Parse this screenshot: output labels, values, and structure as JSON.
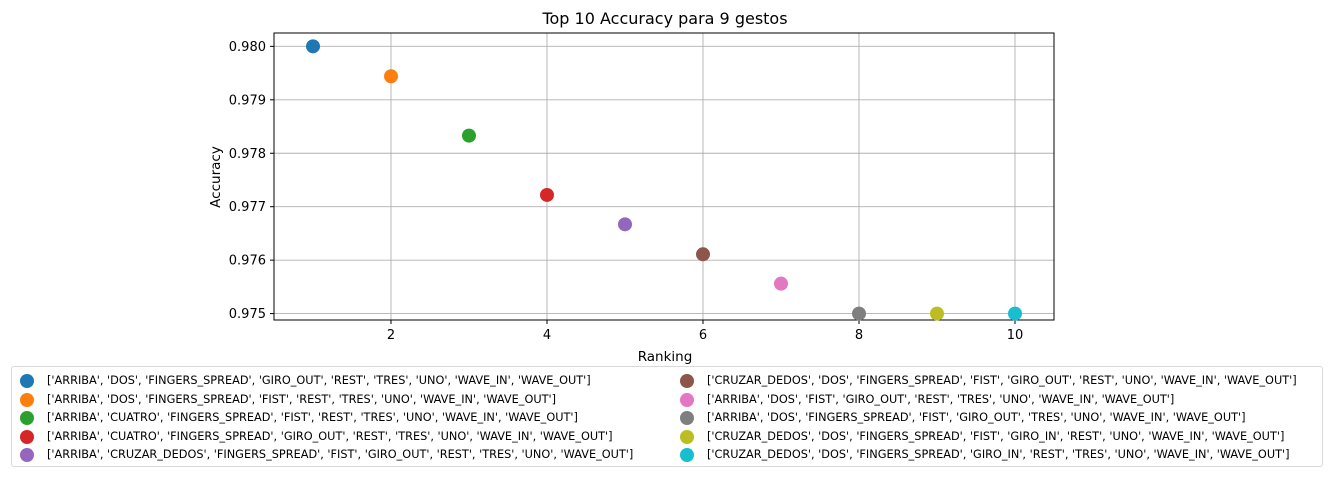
{
  "chart_data": {
    "type": "scatter",
    "title": "Top 10 Accuracy para 9 gestos",
    "xlabel": "Ranking",
    "ylabel": "Accuracy",
    "xlim": [
      0.5,
      10.5
    ],
    "ylim": [
      0.97488,
      0.98025
    ],
    "xticks": [
      2,
      4,
      6,
      8,
      10
    ],
    "xtick_labels": [
      "2",
      "4",
      "6",
      "8",
      "10"
    ],
    "yticks": [
      0.975,
      0.976,
      0.977,
      0.978,
      0.979,
      0.98
    ],
    "ytick_labels": [
      "0.975",
      "0.976",
      "0.977",
      "0.978",
      "0.979",
      "0.980"
    ],
    "grid": true,
    "legend_position": "bottom-center",
    "series": [
      {
        "name": "['ARRIBA', 'DOS', 'FINGERS_SPREAD', 'GIRO_OUT', 'REST', 'TRES', 'UNO', 'WAVE_IN', 'WAVE_OUT']",
        "x": 1,
        "y": 0.98,
        "color": "#1f77b4"
      },
      {
        "name": "['ARRIBA', 'DOS', 'FINGERS_SPREAD', 'FIST', 'REST', 'TRES', 'UNO', 'WAVE_IN', 'WAVE_OUT']",
        "x": 2,
        "y": 0.97944,
        "color": "#ff7f0e"
      },
      {
        "name": "['ARRIBA', 'CUATRO', 'FINGERS_SPREAD', 'FIST', 'REST', 'TRES', 'UNO', 'WAVE_IN', 'WAVE_OUT']",
        "x": 3,
        "y": 0.97833,
        "color": "#2ca02c"
      },
      {
        "name": "['ARRIBA', 'CUATRO', 'FINGERS_SPREAD', 'GIRO_OUT', 'REST', 'TRES', 'UNO', 'WAVE_IN', 'WAVE_OUT']",
        "x": 4,
        "y": 0.97722,
        "color": "#d62728"
      },
      {
        "name": "['ARRIBA', 'CRUZAR_DEDOS', 'FINGERS_SPREAD', 'FIST', 'GIRO_OUT', 'REST', 'TRES', 'UNO', 'WAVE_OUT']",
        "x": 5,
        "y": 0.97667,
        "color": "#9467bd"
      },
      {
        "name": "['CRUZAR_DEDOS', 'DOS', 'FINGERS_SPREAD', 'FIST', 'GIRO_OUT', 'REST', 'UNO', 'WAVE_IN', 'WAVE_OUT']",
        "x": 6,
        "y": 0.97611,
        "color": "#8c564b"
      },
      {
        "name": "['ARRIBA', 'DOS', 'FIST', 'GIRO_OUT', 'REST', 'TRES', 'UNO', 'WAVE_IN', 'WAVE_OUT']",
        "x": 7,
        "y": 0.97556,
        "color": "#e377c2"
      },
      {
        "name": "['ARRIBA', 'DOS', 'FINGERS_SPREAD', 'FIST', 'GIRO_OUT', 'TRES', 'UNO', 'WAVE_IN', 'WAVE_OUT']",
        "x": 8,
        "y": 0.975,
        "color": "#7f7f7f"
      },
      {
        "name": "['CRUZAR_DEDOS', 'DOS', 'FINGERS_SPREAD', 'FIST', 'GIRO_IN', 'REST', 'UNO', 'WAVE_IN', 'WAVE_OUT']",
        "x": 9,
        "y": 0.975,
        "color": "#bcbd22"
      },
      {
        "name": "['CRUZAR_DEDOS', 'DOS', 'FINGERS_SPREAD', 'GIRO_IN', 'REST', 'TRES', 'UNO', 'WAVE_IN', 'WAVE_OUT']",
        "x": 10,
        "y": 0.975,
        "color": "#17becf"
      }
    ]
  }
}
